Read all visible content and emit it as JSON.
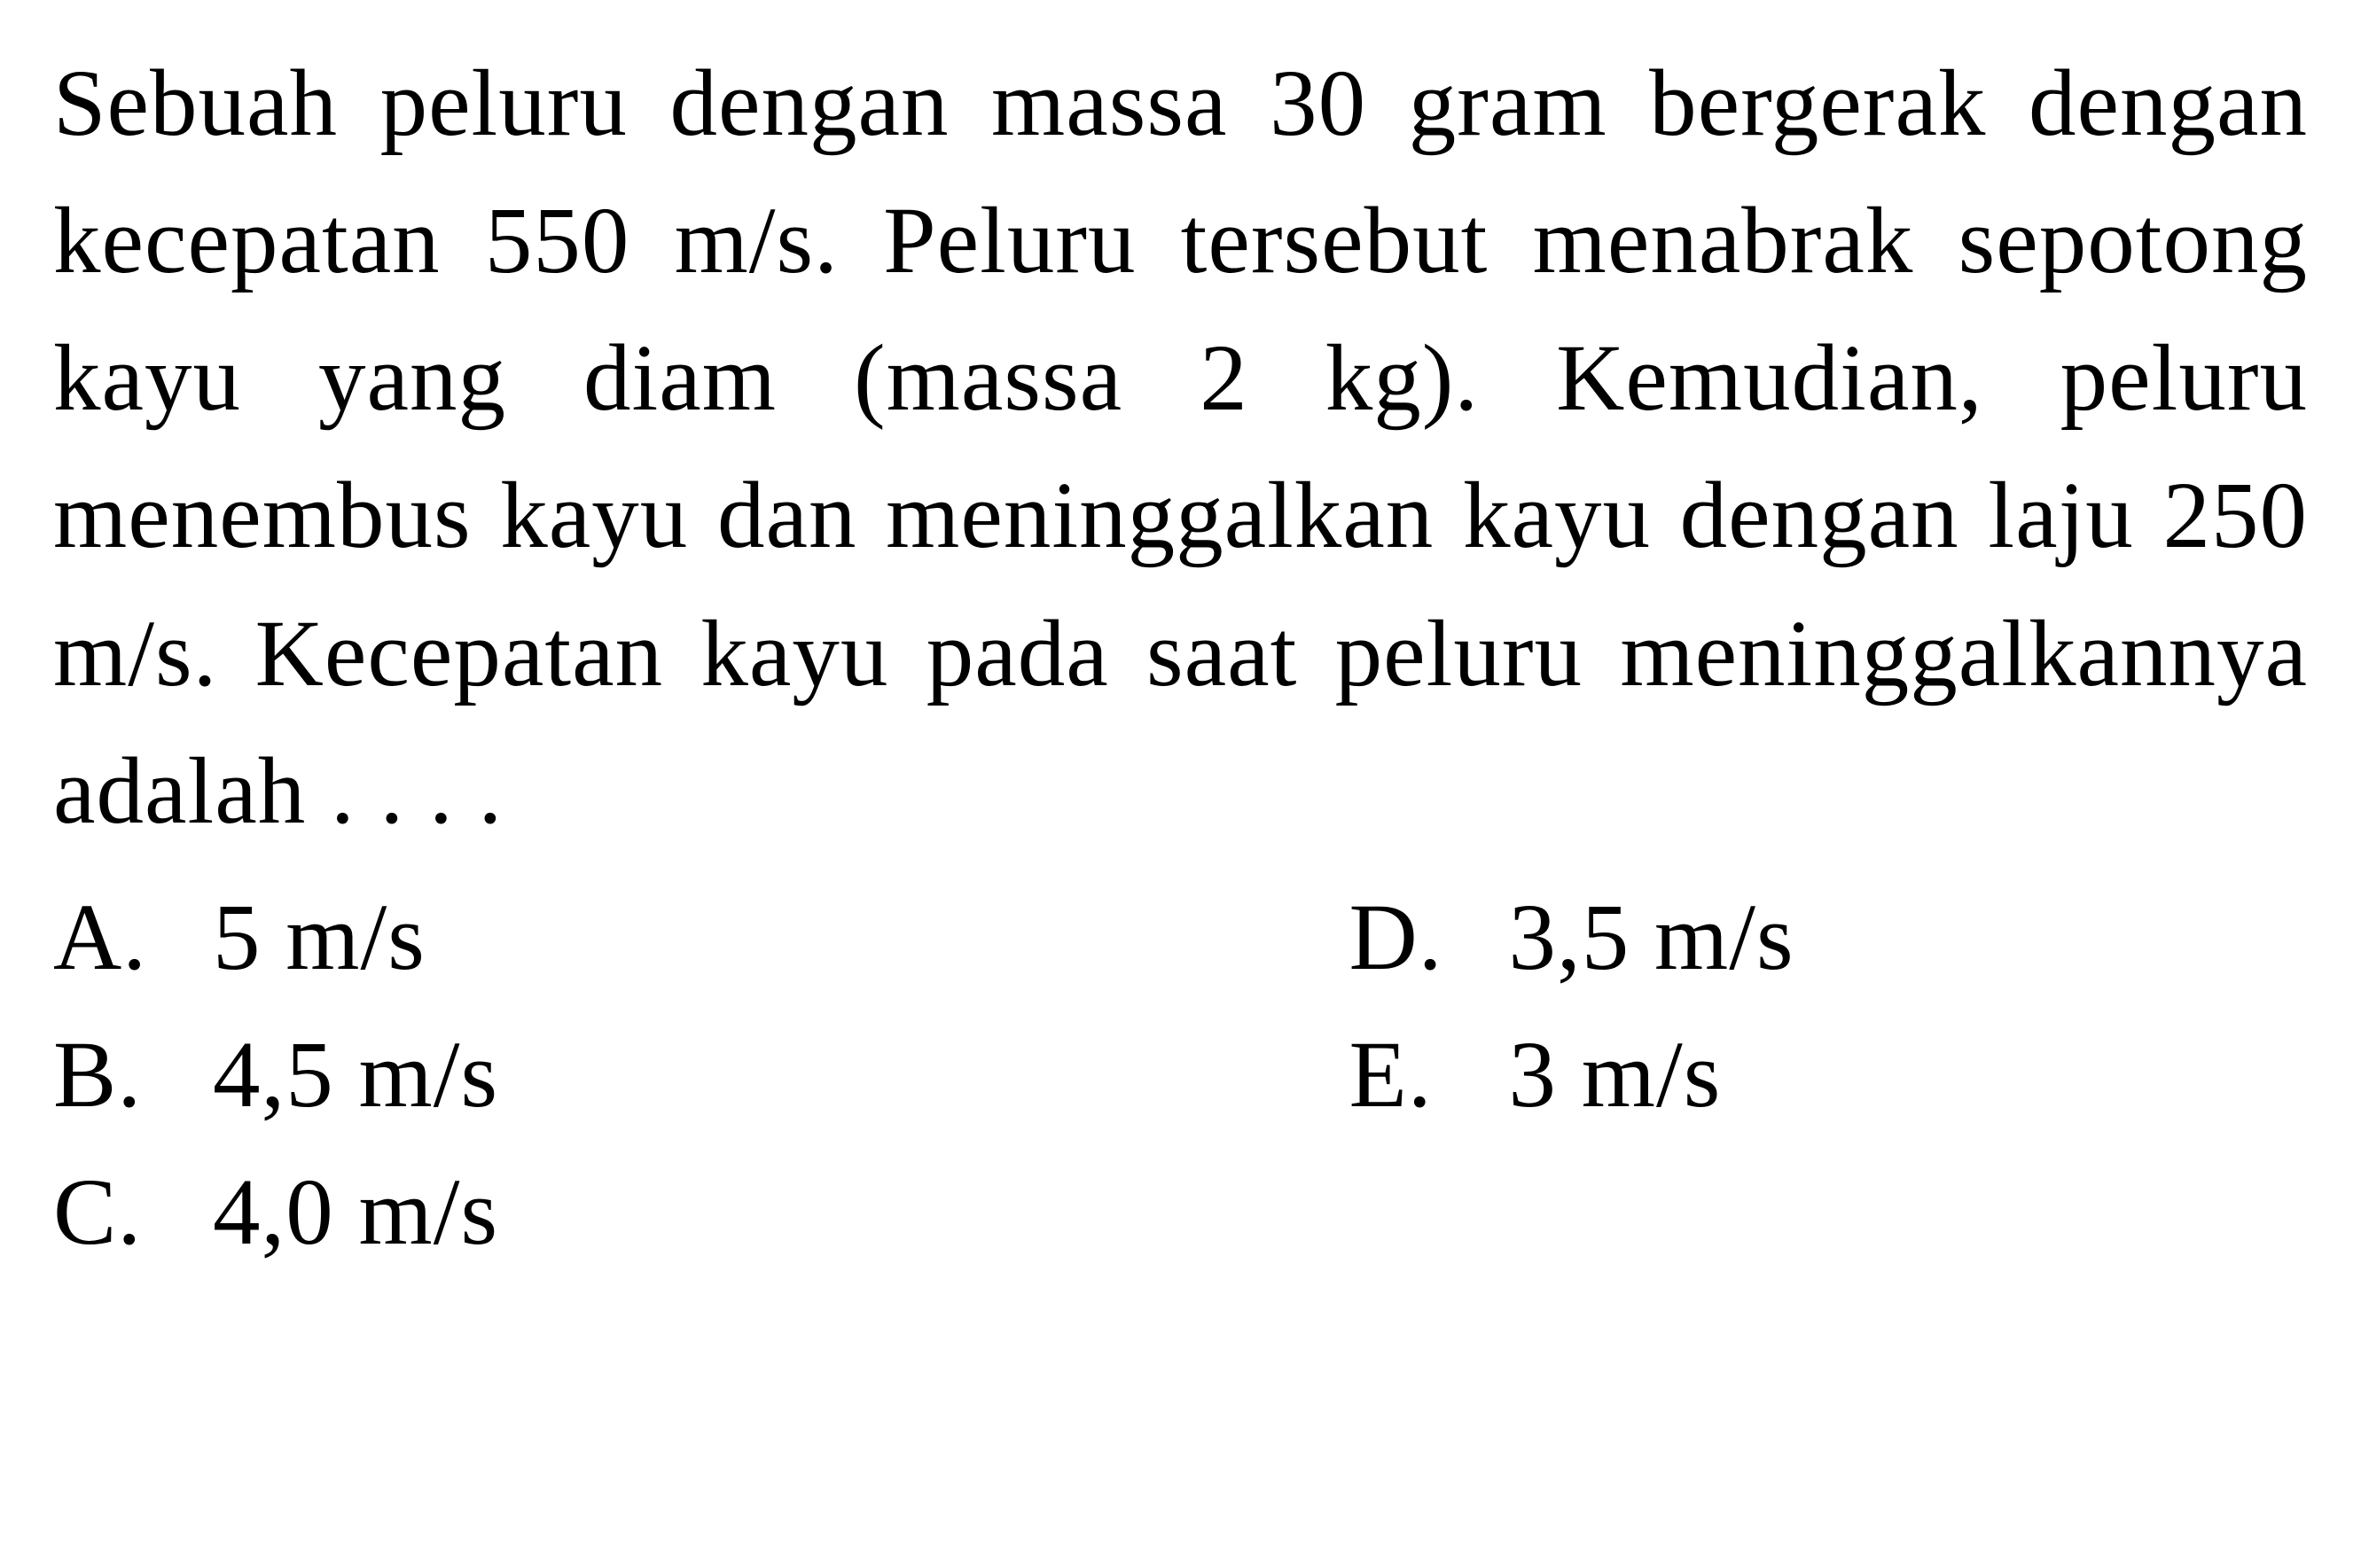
{
  "question": {
    "text": "Sebuah peluru dengan massa 30 gram bergerak dengan kecepatan 550 m/s. Peluru tersebut menabrak sepotong kayu yang diam (massa 2 kg). Kemudian, peluru menembus kayu dan meninggalkan kayu dengan laju 250 m/s. Kecepatan kayu pada saat peluru meninggalkannya adalah . . . ."
  },
  "options": {
    "a": {
      "letter": "A.",
      "value": "5 m/s"
    },
    "b": {
      "letter": "B.",
      "value": "4,5 m/s"
    },
    "c": {
      "letter": "C.",
      "value": "4,0 m/s"
    },
    "d": {
      "letter": "D.",
      "value": "3,5 m/s"
    },
    "e": {
      "letter": "E.",
      "value": "3 m/s"
    }
  },
  "styling": {
    "background_color": "#ffffff",
    "text_color": "#000000",
    "font_family": "Times New Roman",
    "font_size_pt": 80,
    "line_height": 1.45
  }
}
